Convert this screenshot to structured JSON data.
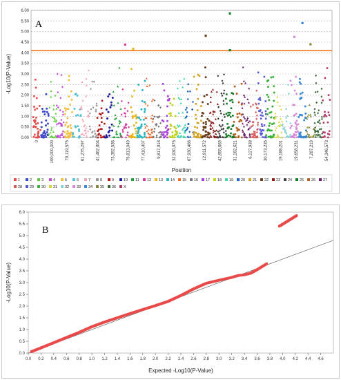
{
  "chart_data": [
    {
      "panel_label": "A",
      "type": "scatter",
      "subtype": "manhattan",
      "ylabel": "-Log10(P-Value)",
      "xlabel": "Position",
      "ylim": [
        0,
        6.0
      ],
      "yticks": [
        "0.00",
        "0.50",
        "1.00",
        "1.50",
        "2.00",
        "2.50",
        "3.00",
        "3.50",
        "4.00",
        "4.50",
        "5.00",
        "5.50",
        "6.00"
      ],
      "grid": "horizontal dashed",
      "threshold": {
        "y": 4.1,
        "color": "#f07a1c"
      },
      "xtick_labels": [
        "0",
        "100,000,000",
        "79,119,575",
        "61,275,297",
        "41,462,804",
        "73,392,536",
        "75,813,049",
        "77,410,407",
        "9,817,918",
        "32,930,975",
        "67,930,466",
        "12,911,572",
        "42,855,669",
        "31,182,621",
        "6,127,938",
        "30,173,235",
        "19,188,201",
        "19,658,231",
        "7,287,219",
        "54,346,573"
      ],
      "legend": [
        "1",
        "2",
        "3",
        "4",
        "5",
        "6",
        "7",
        "8",
        "9",
        "10",
        "11",
        "12",
        "13",
        "14",
        "15",
        "16",
        "17",
        "18",
        "19",
        "20",
        "21",
        "22",
        "23",
        "24",
        "25",
        "26",
        "27",
        "28",
        "29",
        "30",
        "31",
        "32",
        "33",
        "34",
        "35",
        "36",
        "X"
      ],
      "chromosome_colors": [
        "#e34b4b",
        "#3a48c7",
        "#5ccc3a",
        "#c34fd6",
        "#f2bd3c",
        "#56c2d6",
        "#f2a6b5",
        "#9a9a9a",
        "#b41c1c",
        "#1c1c9a",
        "#1ea03a",
        "#d43c9c",
        "#e8b71a",
        "#2fb7c2",
        "#e86b2f",
        "#7a7a7a",
        "#a83cd6",
        "#c2d21c",
        "#3cd6a8",
        "#1c64c2",
        "#d2a21c",
        "#6a3c1c",
        "#8a1c1c",
        "#3c3c3c",
        "#147828",
        "#b2621c",
        "#6a1c6a",
        "#d65a5a",
        "#5a5ad6",
        "#3cb23c",
        "#d6d63c",
        "#8ad6d6",
        "#d68ad6",
        "#3c8ad6",
        "#8a8a3c",
        "#3c6a3c",
        "#b23c6a"
      ],
      "notable_points": [
        {
          "chromosome": "12",
          "y": 4.38
        },
        {
          "chromosome": "13",
          "y": 4.18
        },
        {
          "chromosome": "22",
          "y": 4.8
        },
        {
          "chromosome": "25",
          "y": 5.85
        },
        {
          "chromosome": "25",
          "y": 4.12
        },
        {
          "chromosome": "33",
          "y": 4.75
        },
        {
          "chromosome": "34",
          "y": 5.4
        },
        {
          "chromosome": "35",
          "y": 4.4
        }
      ]
    },
    {
      "panel_label": "B",
      "type": "scatter",
      "subtype": "qq",
      "xlabel": "Expected -Log10(P-Value)",
      "ylabel": "-Log10(P-Value)",
      "xlim": [
        0,
        4.8
      ],
      "ylim": [
        0,
        6.0
      ],
      "xticks": [
        "0.0",
        "0.2",
        "0.4",
        "0.6",
        "0.8",
        "1.0",
        "1.2",
        "1.4",
        "1.6",
        "1.8",
        "2.0",
        "2.2",
        "2.4",
        "2.6",
        "2.8",
        "3.0",
        "3.2",
        "3.4",
        "3.6",
        "3.8",
        "4.0",
        "4.2",
        "4.4",
        "4.6"
      ],
      "yticks": [
        "0.0",
        "0.5",
        "1.0",
        "1.5",
        "2.0",
        "2.5",
        "3.0",
        "3.5",
        "4.0",
        "4.5",
        "5.0",
        "5.5",
        "6.0"
      ],
      "reference_line": "y = x",
      "point_color": "#e84a4a",
      "points": [
        [
          0.05,
          0.06
        ],
        [
          0.2,
          0.22
        ],
        [
          0.4,
          0.44
        ],
        [
          0.6,
          0.66
        ],
        [
          0.8,
          0.88
        ],
        [
          1.0,
          1.12
        ],
        [
          1.2,
          1.32
        ],
        [
          1.4,
          1.5
        ],
        [
          1.6,
          1.68
        ],
        [
          1.8,
          1.85
        ],
        [
          2.0,
          2.02
        ],
        [
          2.2,
          2.2
        ],
        [
          2.4,
          2.45
        ],
        [
          2.6,
          2.73
        ],
        [
          2.8,
          2.97
        ],
        [
          3.0,
          3.1
        ],
        [
          3.2,
          3.22
        ],
        [
          3.3,
          3.3
        ],
        [
          3.4,
          3.33
        ],
        [
          3.5,
          3.4
        ],
        [
          3.6,
          3.55
        ],
        [
          3.75,
          3.8
        ],
        [
          3.95,
          5.4
        ],
        [
          4.22,
          5.85
        ]
      ]
    }
  ]
}
